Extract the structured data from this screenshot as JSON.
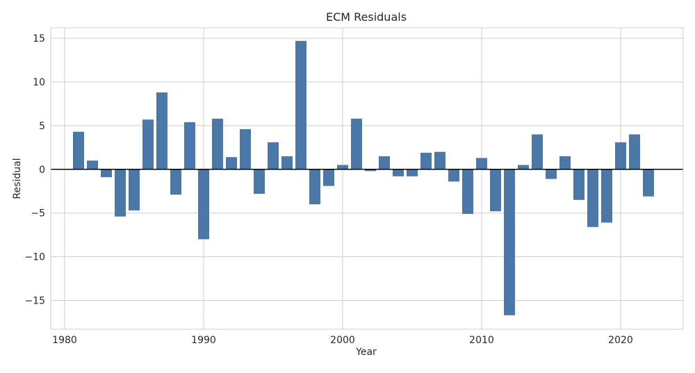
{
  "chart_data": {
    "type": "bar",
    "title": "ECM Residuals",
    "xlabel": "Year",
    "ylabel": "Residual",
    "xlim": [
      1979,
      2024.5
    ],
    "ylim": [
      -18.3,
      16.2
    ],
    "x_ticks": [
      1980,
      1990,
      2000,
      2010,
      2020
    ],
    "y_ticks": [
      -15,
      -10,
      -5,
      0,
      5,
      10,
      15
    ],
    "y_tick_labels": [
      "−15",
      "−10",
      "−5",
      "0",
      "5",
      "10",
      "15"
    ],
    "grid": true,
    "zero_line": true,
    "bar_color": "#4c78a8",
    "x": [
      1981,
      1982,
      1983,
      1984,
      1985,
      1986,
      1987,
      1988,
      1989,
      1990,
      1991,
      1992,
      1993,
      1994,
      1995,
      1996,
      1997,
      1998,
      1999,
      2000,
      2001,
      2002,
      2003,
      2004,
      2005,
      2006,
      2007,
      2008,
      2009,
      2010,
      2011,
      2012,
      2013,
      2014,
      2015,
      2016,
      2017,
      2018,
      2019,
      2020,
      2021,
      2022
    ],
    "values": [
      4.3,
      1.0,
      -0.9,
      -5.4,
      -4.7,
      5.7,
      8.8,
      -2.9,
      5.4,
      -8.0,
      5.8,
      1.4,
      4.6,
      -2.8,
      3.1,
      1.5,
      14.7,
      -4.0,
      -1.9,
      0.5,
      5.8,
      -0.2,
      1.5,
      -0.8,
      -0.8,
      1.9,
      2.0,
      -1.4,
      -5.1,
      1.3,
      -4.8,
      -16.7,
      0.5,
      4.0,
      -1.1,
      1.5,
      -3.5,
      -6.6,
      -6.1,
      3.1,
      4.0,
      -3.1
    ]
  }
}
